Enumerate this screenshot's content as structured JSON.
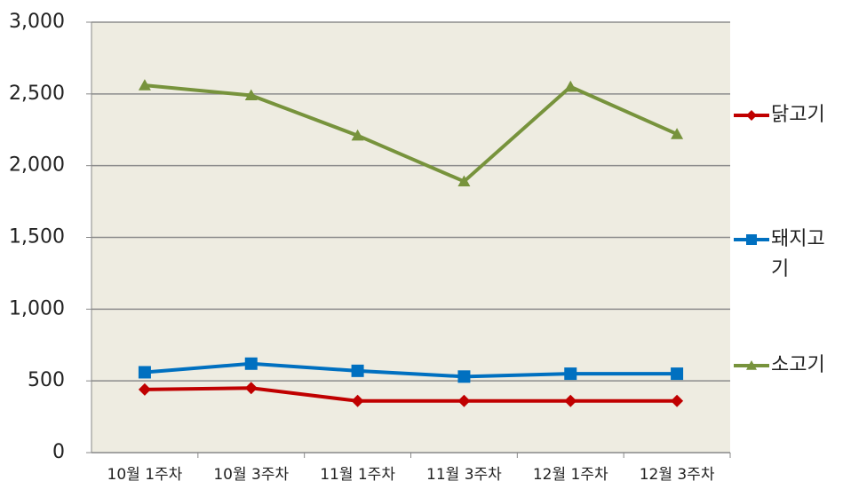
{
  "chart_data": {
    "type": "line",
    "categories": [
      "10월 1주차",
      "10월 3주차",
      "11월 1주차",
      "11월 3주차",
      "12월 1주차",
      "12월 3주차"
    ],
    "series": [
      {
        "name": "닭고기",
        "color": "#c00000",
        "marker": "diamond",
        "values": [
          440,
          450,
          360,
          360,
          360,
          360
        ]
      },
      {
        "name": "돼지고기",
        "color": "#0070c0",
        "marker": "square",
        "values": [
          560,
          620,
          570,
          530,
          550,
          550
        ]
      },
      {
        "name": "소고기",
        "color": "#77933c",
        "marker": "triangle",
        "values": [
          2560,
          2490,
          2210,
          1890,
          2550,
          2220
        ]
      }
    ],
    "ylim": [
      0,
      3000
    ],
    "yticks": [
      0,
      500,
      {
        "value": 1000,
        "label": "1,000"
      },
      {
        "value": 1500,
        "label": "1,500"
      },
      {
        "value": 2000,
        "label": "2,000"
      },
      {
        "value": 2500,
        "label": "2,500"
      },
      {
        "value": 3000,
        "label": "3,000"
      }
    ],
    "grid": true,
    "legend": "right"
  }
}
